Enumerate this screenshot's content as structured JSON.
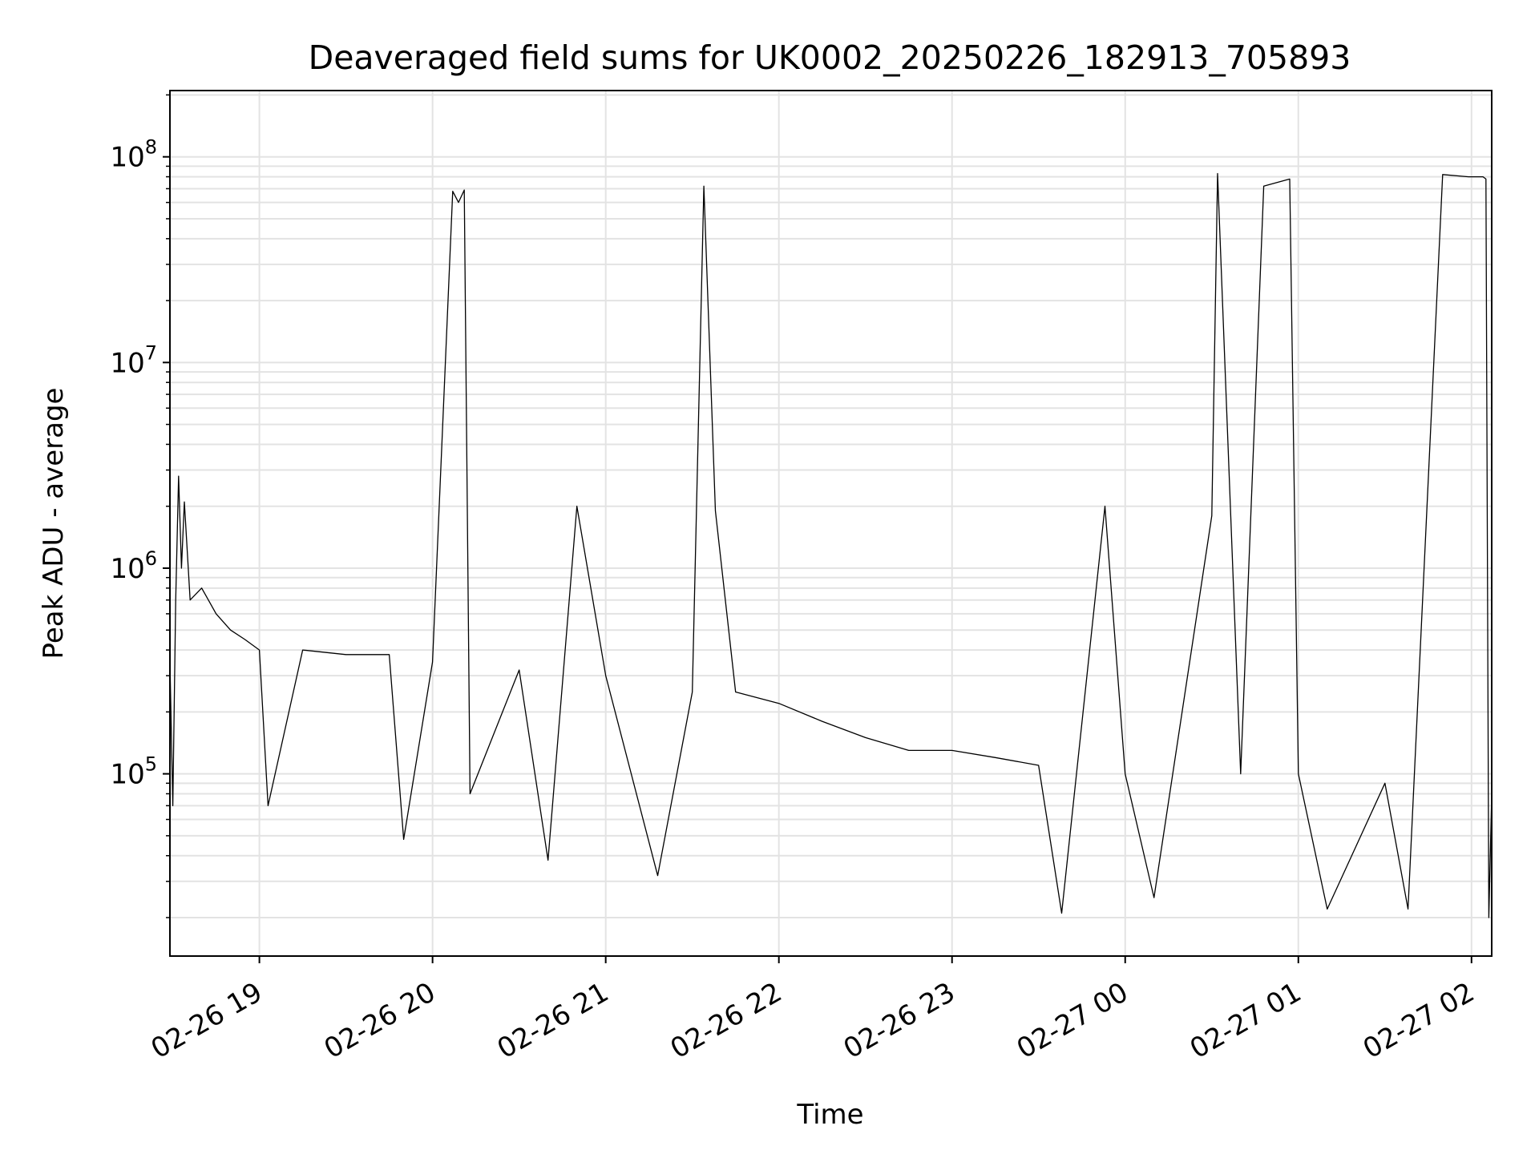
{
  "chart_data": {
    "type": "line",
    "title": "Deaveraged field sums for UK0002_20250226_182913_705893",
    "xlabel": "Time",
    "ylabel": "Peak ADU - average",
    "yscale": "log",
    "ylim": [
      13000,
      210000000
    ],
    "xlim": [
      "02-26 18:29",
      "02-27 02:07"
    ],
    "grid": true,
    "line_color": "#000000",
    "x_ticks": [
      "02-26 19",
      "02-26 20",
      "02-26 21",
      "02-26 22",
      "02-26 23",
      "02-27 00",
      "02-27 01",
      "02-27 02"
    ],
    "y_ticks": [
      {
        "value": 100000,
        "base": "10",
        "exp": "5"
      },
      {
        "value": 1000000,
        "base": "10",
        "exp": "6"
      },
      {
        "value": 10000000,
        "base": "10",
        "exp": "7"
      },
      {
        "value": 100000000,
        "base": "10",
        "exp": "8"
      }
    ],
    "series": [
      {
        "points": [
          [
            "02-26 18:29",
            350000
          ],
          [
            "02-26 18:30",
            70000
          ],
          [
            "02-26 18:31",
            700000
          ],
          [
            "02-26 18:32",
            2800000
          ],
          [
            "02-26 18:33",
            1000000
          ],
          [
            "02-26 18:34",
            2100000
          ],
          [
            "02-26 18:36",
            700000
          ],
          [
            "02-26 18:40",
            800000
          ],
          [
            "02-26 18:45",
            600000
          ],
          [
            "02-26 18:50",
            500000
          ],
          [
            "02-26 18:55",
            450000
          ],
          [
            "02-26 19:00",
            400000
          ],
          [
            "02-26 19:03",
            70000
          ],
          [
            "02-26 19:15",
            400000
          ],
          [
            "02-26 19:30",
            380000
          ],
          [
            "02-26 19:45",
            380000
          ],
          [
            "02-26 19:50",
            48000
          ],
          [
            "02-26 20:00",
            350000
          ],
          [
            "02-26 20:07",
            68000000
          ],
          [
            "02-26 20:09",
            60000000
          ],
          [
            "02-26 20:11",
            69000000
          ],
          [
            "02-26 20:13",
            80000
          ],
          [
            "02-26 20:30",
            320000
          ],
          [
            "02-26 20:40",
            38000
          ],
          [
            "02-26 20:50",
            2000000
          ],
          [
            "02-26 21:00",
            300000
          ],
          [
            "02-26 21:18",
            32000
          ],
          [
            "02-26 21:30",
            250000
          ],
          [
            "02-26 21:34",
            72000000
          ],
          [
            "02-26 21:38",
            1900000
          ],
          [
            "02-26 21:45",
            250000
          ],
          [
            "02-26 22:00",
            220000
          ],
          [
            "02-26 22:15",
            180000
          ],
          [
            "02-26 22:30",
            150000
          ],
          [
            "02-26 22:45",
            130000
          ],
          [
            "02-26 23:00",
            130000
          ],
          [
            "02-26 23:15",
            120000
          ],
          [
            "02-26 23:30",
            110000
          ],
          [
            "02-26 23:38",
            21000
          ],
          [
            "02-26 23:53",
            2000000
          ],
          [
            "02-27 00:00",
            100000
          ],
          [
            "02-27 00:10",
            25000
          ],
          [
            "02-27 00:30",
            1800000
          ],
          [
            "02-27 00:32",
            83000000
          ],
          [
            "02-27 00:40",
            100000
          ],
          [
            "02-27 00:48",
            72000000
          ],
          [
            "02-27 00:57",
            78000000
          ],
          [
            "02-27 01:00",
            100000
          ],
          [
            "02-27 01:10",
            22000
          ],
          [
            "02-27 01:30",
            90000
          ],
          [
            "02-27 01:38",
            22000
          ],
          [
            "02-27 01:50",
            82000000
          ],
          [
            "02-27 01:59",
            80000000
          ],
          [
            "02-27 02:00",
            80000000
          ],
          [
            "02-27 02:04",
            80000000
          ],
          [
            "02-27 02:05",
            78000000
          ],
          [
            "02-27 02:06",
            20000
          ],
          [
            "02-27 02:07",
            80000
          ]
        ]
      }
    ]
  }
}
